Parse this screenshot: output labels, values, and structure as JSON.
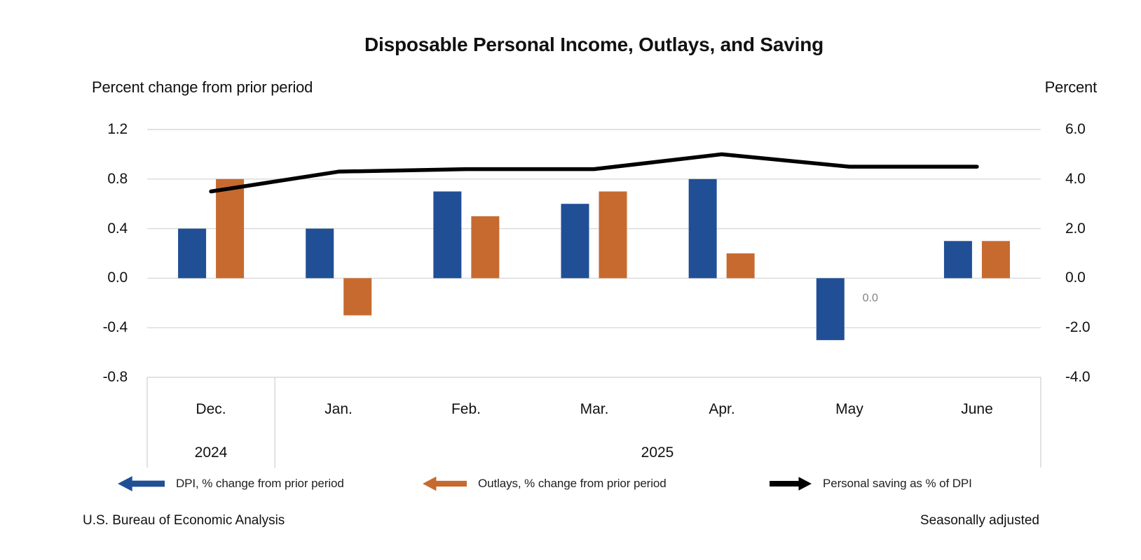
{
  "title": "Disposable Personal Income, Outlays, and Saving",
  "left_axis": {
    "label": "Percent change from prior period",
    "ticks": [
      "1.2",
      "0.8",
      "0.4",
      "0.0",
      "-0.4",
      "-0.8"
    ]
  },
  "right_axis": {
    "label": "Percent",
    "ticks": [
      "6.0",
      "4.0",
      "2.0",
      "0.0",
      "-2.0",
      "-4.0"
    ]
  },
  "chart_data": {
    "type": "bar+line combo, dual axis",
    "categories": [
      "Dec.",
      "Jan.",
      "Feb.",
      "Mar.",
      "Apr.",
      "May",
      "June"
    ],
    "year_groups": [
      {
        "label": "2024",
        "span": [
          0,
          0
        ]
      },
      {
        "label": "2025",
        "span": [
          1,
          6
        ]
      }
    ],
    "left_ylim": [
      -0.8,
      1.2
    ],
    "right_ylim": [
      -4.0,
      6.0
    ],
    "grid": "horizontal only",
    "legend_position": "bottom",
    "series": [
      {
        "name": "DPI, % change from prior period",
        "type": "bar",
        "axis": "left",
        "color": "#204F96",
        "values": [
          0.4,
          0.4,
          0.7,
          0.6,
          0.8,
          -0.5,
          0.3
        ]
      },
      {
        "name": "Outlays, % change from prior period",
        "type": "bar",
        "axis": "left",
        "color": "#C76A2F",
        "values": [
          0.8,
          -0.3,
          0.5,
          0.7,
          0.2,
          0.0,
          0.3
        ]
      },
      {
        "name": "Personal saving as % of DPI",
        "type": "line",
        "axis": "right",
        "color": "#000000",
        "values": [
          3.5,
          4.3,
          4.4,
          4.4,
          5.0,
          4.5,
          4.5
        ]
      }
    ],
    "annotations": [
      {
        "text": "0.0",
        "series": 1,
        "category_index": 5,
        "color": "#808080"
      }
    ]
  },
  "footer": {
    "left": "U.S. Bureau of Economic Analysis",
    "right": "Seasonally adjusted"
  }
}
